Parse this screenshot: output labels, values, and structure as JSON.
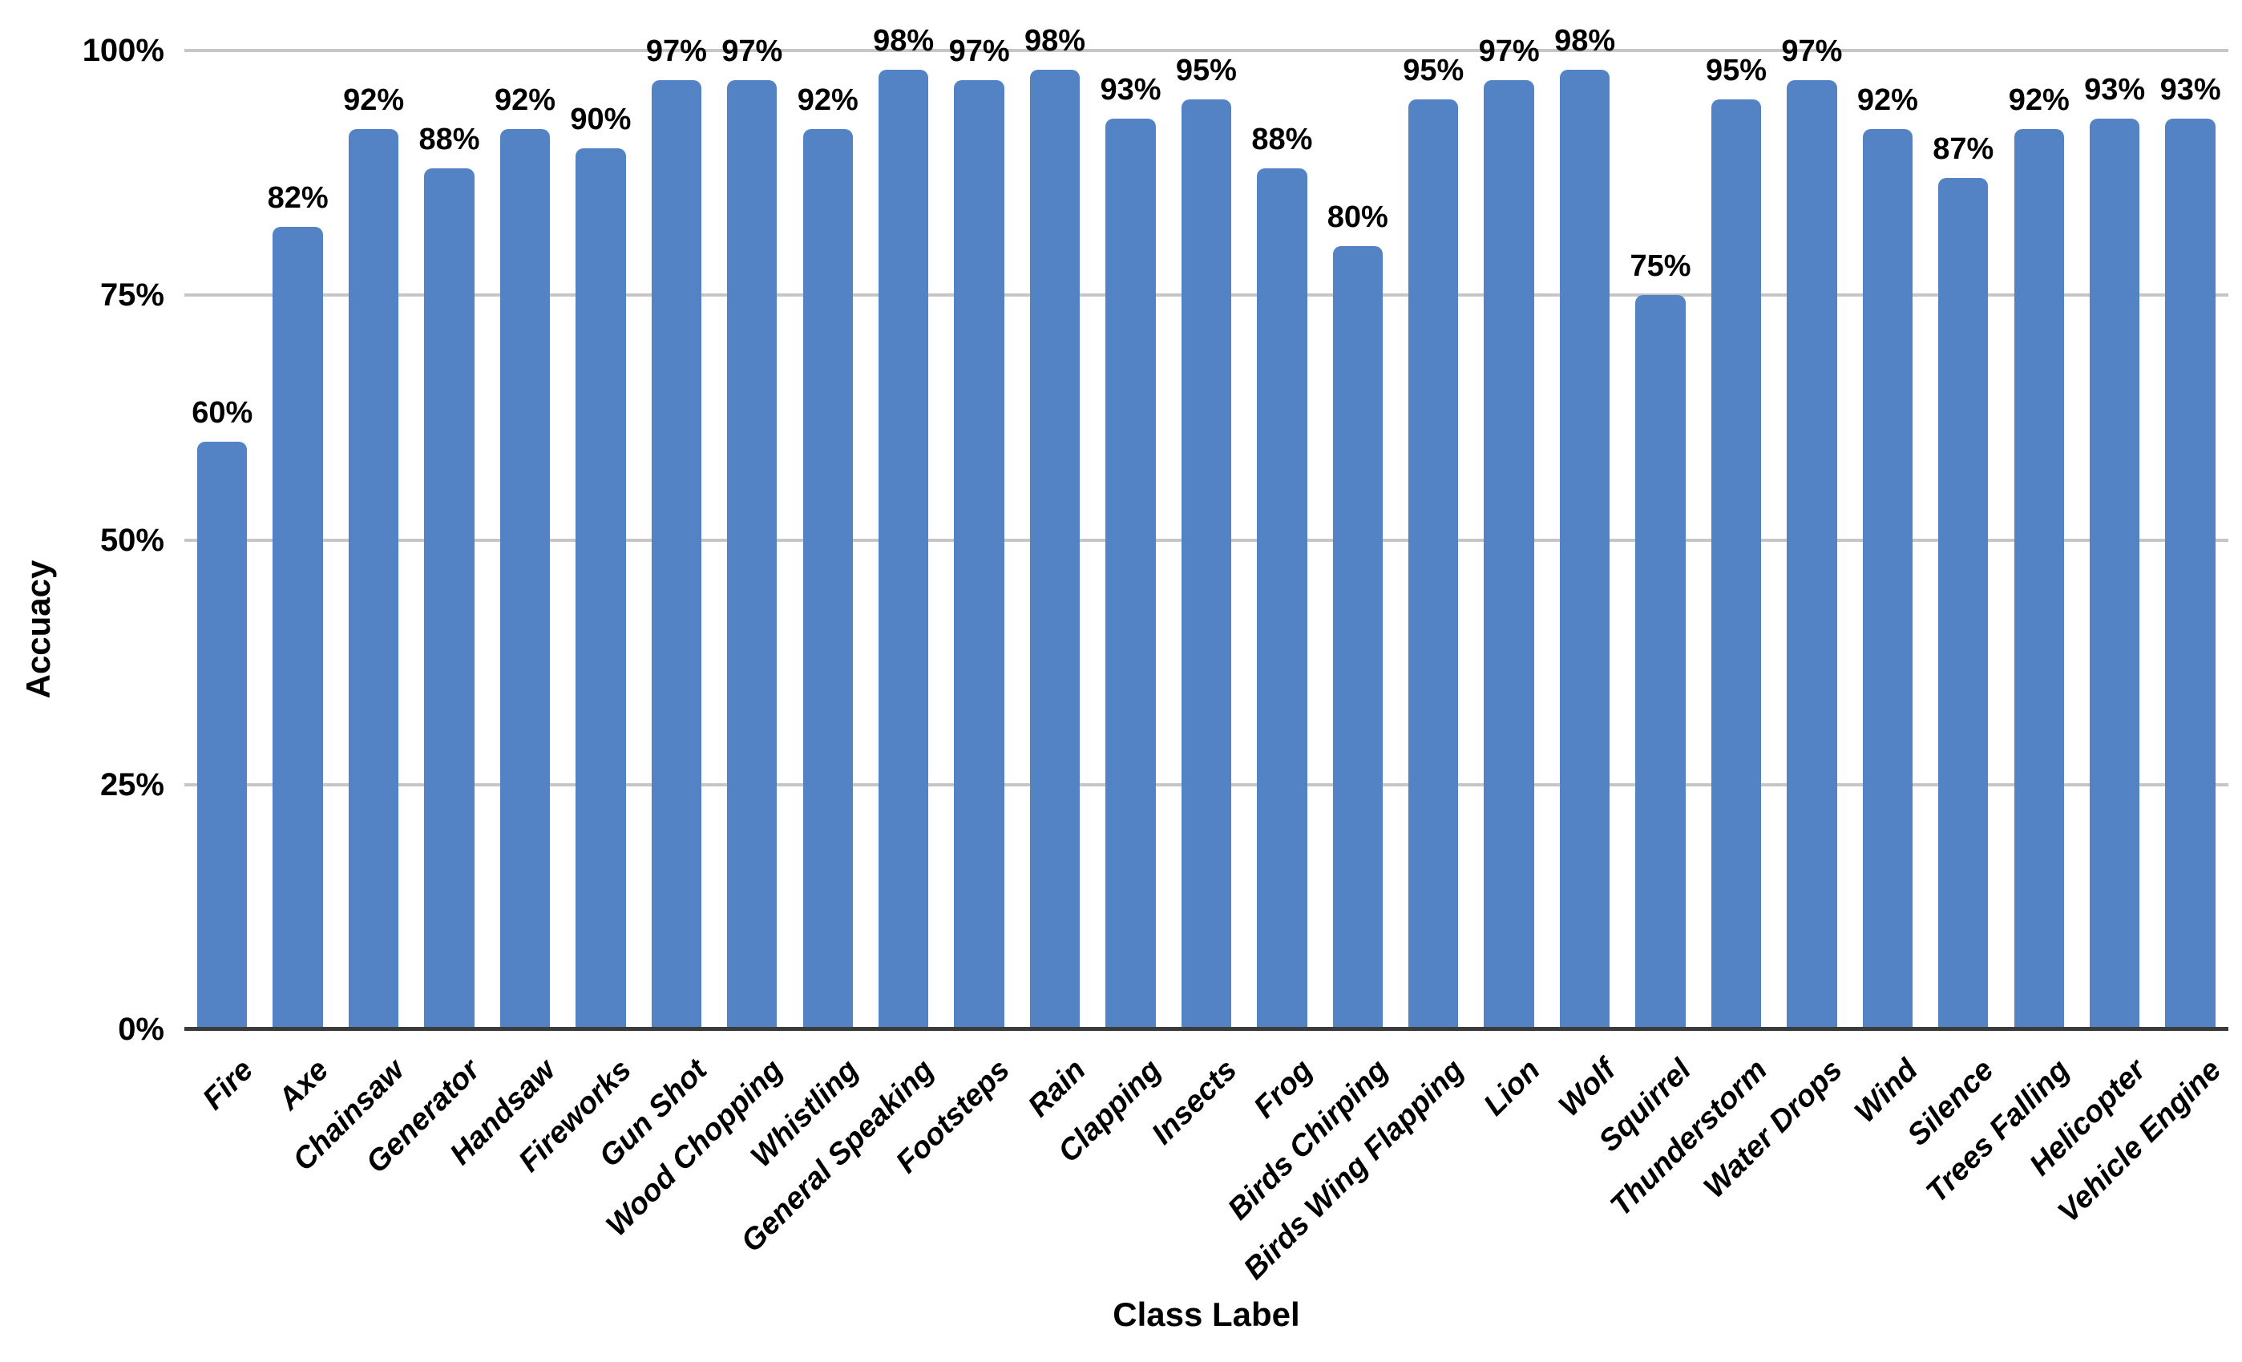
{
  "chart_data": {
    "type": "bar",
    "title": "",
    "xlabel": "Class Label",
    "ylabel": "Accuacy",
    "categories": [
      "Fire",
      "Axe",
      "Chainsaw",
      "Generator",
      "Handsaw",
      "Fireworks",
      "Gun Shot",
      "Wood Chopping",
      "Whistling",
      "General Speaking",
      "Footsteps",
      "Rain",
      "Clapping",
      "Insects",
      "Frog",
      "Birds Chirping",
      "Birds Wing Flapping",
      "Lion",
      "Wolf",
      "Squirrel",
      "Thunderstorm",
      "Water Drops",
      "Wind",
      "Silence",
      "Trees Falling",
      "Helicopter",
      "Vehicle Engine"
    ],
    "values": [
      60,
      82,
      92,
      88,
      92,
      90,
      97,
      97,
      92,
      98,
      97,
      98,
      93,
      95,
      88,
      80,
      95,
      97,
      98,
      75,
      95,
      97,
      92,
      87,
      92,
      93,
      93
    ],
    "value_labels": [
      "60%",
      "82%",
      "92%",
      "88%",
      "92%",
      "90%",
      "97%",
      "97%",
      "92%",
      "98%",
      "97%",
      "98%",
      "93%",
      "95%",
      "88%",
      "80%",
      "95%",
      "97%",
      "98%",
      "75%",
      "95%",
      "97%",
      "92%",
      "87%",
      "92%",
      "93%",
      "93%"
    ],
    "ylim": [
      0,
      100
    ],
    "y_ticks": [
      0,
      25,
      50,
      75,
      100
    ],
    "y_tick_labels": [
      "0%",
      "25%",
      "50%",
      "75%",
      "100%"
    ],
    "grid": true,
    "legend": false,
    "colors": {
      "bar": "#5383C4",
      "gridline": "#C6C6C6",
      "axis_line": "#3B3B3B",
      "text": "#000000",
      "background": "#FFFFFF"
    }
  }
}
